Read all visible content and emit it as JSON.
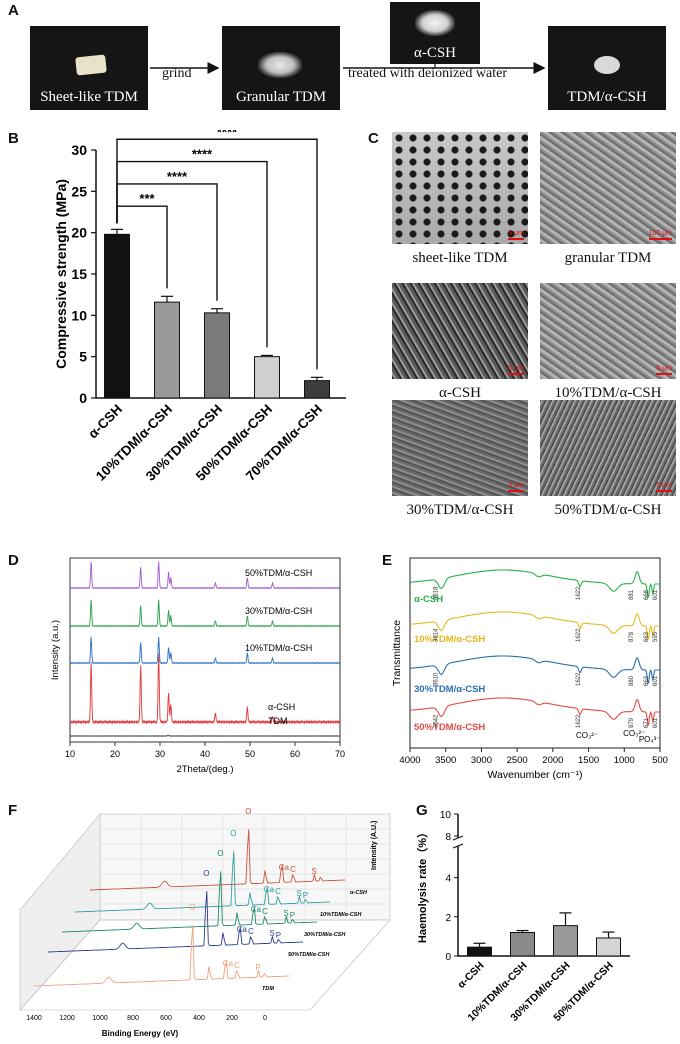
{
  "panelA": {
    "label": "A",
    "photos": [
      {
        "caption": "Sheet-like TDM"
      },
      {
        "caption": "Granular TDM"
      },
      {
        "caption": "α-CSH"
      },
      {
        "caption": "TDM/α-CSH"
      }
    ],
    "arrow1": "grind",
    "arrow2": "treated with deionized water"
  },
  "panelB": {
    "label": "B",
    "chart_data": {
      "type": "bar",
      "categories": [
        "α-CSH",
        "10%TDM/α-CSH",
        "30%TDM/α-CSH",
        "50%TDM/α-CSH",
        "70%TDM/α-CSH"
      ],
      "values": [
        19.8,
        11.6,
        10.3,
        5.0,
        2.1
      ],
      "errors": [
        0.6,
        0.7,
        0.5,
        0.15,
        0.4
      ],
      "colors": [
        "#111111",
        "#9a9a9a",
        "#7a7a7a",
        "#d0d0d0",
        "#3c3c3c"
      ],
      "ylabel": "Compressive strength (MPa)",
      "ylim": [
        0,
        30
      ],
      "yticks": [
        0,
        5,
        10,
        15,
        20,
        25,
        30
      ],
      "significance": [
        "***",
        "****",
        "****",
        "****"
      ]
    }
  },
  "panelC": {
    "label": "C",
    "images": [
      {
        "caption": "sheet-like TDM",
        "scale": "5 μm"
      },
      {
        "caption": "granular TDM",
        "scale": "100 μm"
      },
      {
        "caption": "α-CSH",
        "scale": "5 μm"
      },
      {
        "caption": "10%TDM/α-CSH",
        "scale": "5 μm"
      },
      {
        "caption": "30%TDM/α-CSH",
        "scale": "5 μm"
      },
      {
        "caption": "50%TDM/α-CSH",
        "scale": "5 μm"
      }
    ]
  },
  "panelD": {
    "label": "D",
    "chart_data": {
      "type": "line",
      "title": "",
      "xlabel": "2Theta/(deg.)",
      "ylabel": "Intensity (a.u.)",
      "xlim": [
        10,
        70
      ],
      "xticks": [
        10,
        20,
        30,
        40,
        50,
        60,
        70
      ],
      "series": [
        {
          "name": "50%TDM/α-CSH",
          "color": "#a05ad2",
          "peaks": [
            [
              14.7,
              1.0
            ],
            [
              25.7,
              0.8
            ],
            [
              29.7,
              1.0
            ],
            [
              31.9,
              0.6
            ],
            [
              32.4,
              0.4
            ],
            [
              42.3,
              0.2
            ],
            [
              49.4,
              0.4
            ],
            [
              55.0,
              0.2
            ]
          ]
        },
        {
          "name": "30%TDM/α-CSH",
          "color": "#2aa14c",
          "peaks": [
            [
              14.7,
              1.0
            ],
            [
              25.7,
              0.8
            ],
            [
              29.7,
              1.0
            ],
            [
              31.9,
              0.6
            ],
            [
              32.4,
              0.4
            ],
            [
              42.3,
              0.2
            ],
            [
              49.4,
              0.4
            ],
            [
              55.0,
              0.2
            ]
          ]
        },
        {
          "name": "10%TDM/α-CSH",
          "color": "#2b6fc4",
          "peaks": [
            [
              14.7,
              1.0
            ],
            [
              25.7,
              0.8
            ],
            [
              29.7,
              1.0
            ],
            [
              31.9,
              0.6
            ],
            [
              32.4,
              0.4
            ],
            [
              42.3,
              0.2
            ],
            [
              49.4,
              0.4
            ],
            [
              55.0,
              0.2
            ]
          ]
        },
        {
          "name": "α-CSH",
          "color": "#e0363c",
          "peaks": [
            [
              14.7,
              1.0
            ],
            [
              25.7,
              0.95
            ],
            [
              29.7,
              1.15
            ],
            [
              31.9,
              0.5
            ],
            [
              32.4,
              0.3
            ],
            [
              42.3,
              0.15
            ],
            [
              49.4,
              0.25
            ],
            [
              55.0,
              0.1
            ]
          ]
        },
        {
          "name": "TDM",
          "color": "#333333",
          "peaks": [
            [
              31.8,
              0.08
            ]
          ]
        }
      ]
    }
  },
  "panelE": {
    "label": "E",
    "chart_data": {
      "type": "line",
      "xlabel": "Wavenumber (cm⁻¹)",
      "ylabel": "Transmittance",
      "xlim": [
        4000,
        500
      ],
      "xticks": [
        4000,
        3500,
        3000,
        2500,
        2000,
        1500,
        1000,
        500
      ],
      "series": [
        {
          "name": "α-CSH",
          "color": "#27b24a",
          "annotations": [
            "3618",
            "1622",
            "881",
            "668",
            "601"
          ]
        },
        {
          "name": "10%TDM/α-CSH",
          "color": "#e6b820",
          "annotations": [
            "3614",
            "1622",
            "878",
            "663",
            "595"
          ]
        },
        {
          "name": "30%TDM/α-CSH",
          "color": "#2b6fb0",
          "annotations": [
            "3610",
            "1622",
            "880",
            "663",
            "601"
          ]
        },
        {
          "name": "50%TDM/α-CSH",
          "color": "#e24a48",
          "annotations": [
            "3542",
            "1622",
            "879",
            "671",
            "601"
          ]
        }
      ],
      "markers": [
        "CO₃²⁻",
        "CO₃²⁻",
        "PO₄³⁻"
      ]
    }
  },
  "panelF": {
    "label": "F",
    "chart_data": {
      "type": "line",
      "xlabel": "Binding Energy (eV)",
      "zlabel": "Intensity (A.U.)",
      "xticks": [
        1400,
        1200,
        1000,
        800,
        600,
        400,
        200,
        0
      ],
      "series": [
        {
          "name": "α-CSH",
          "color": "#c8553a",
          "peak_labels": [
            "O",
            "Ca",
            "C",
            "S"
          ]
        },
        {
          "name": "10%TDM/α-CSH",
          "color": "#2fa0a0",
          "peak_labels": [
            "O",
            "Ca",
            "C",
            "S",
            "P"
          ]
        },
        {
          "name": "30%TDM/α-CSH",
          "color": "#1f8a6a",
          "peak_labels": [
            "O",
            "Ca",
            "C",
            "S",
            "P"
          ]
        },
        {
          "name": "50%TDM/α-CSH",
          "color": "#2a3e8a",
          "peak_labels": [
            "O",
            "Ca",
            "C",
            "S",
            "P"
          ]
        },
        {
          "name": "TDM",
          "color": "#f0a080",
          "peak_labels": [
            "O",
            "Ca",
            "C",
            "P"
          ]
        }
      ]
    }
  },
  "panelG": {
    "label": "G",
    "chart_data": {
      "type": "bar",
      "categories": [
        "α-CSH",
        "10%TDM/α-CSH",
        "30%TDM/α-CSH",
        "50%TDM/α-CSH"
      ],
      "values": [
        0.45,
        1.2,
        1.55,
        0.92
      ],
      "errors": [
        0.2,
        0.1,
        0.65,
        0.3
      ],
      "colors": [
        "#111111",
        "#8a8a8a",
        "#9a9a9a",
        "#d5d5d5"
      ],
      "ylabel": "Haemolysis rate（%）",
      "yticks_lower": [
        0,
        2,
        4
      ],
      "yticks_upper": [
        8,
        10
      ]
    }
  }
}
